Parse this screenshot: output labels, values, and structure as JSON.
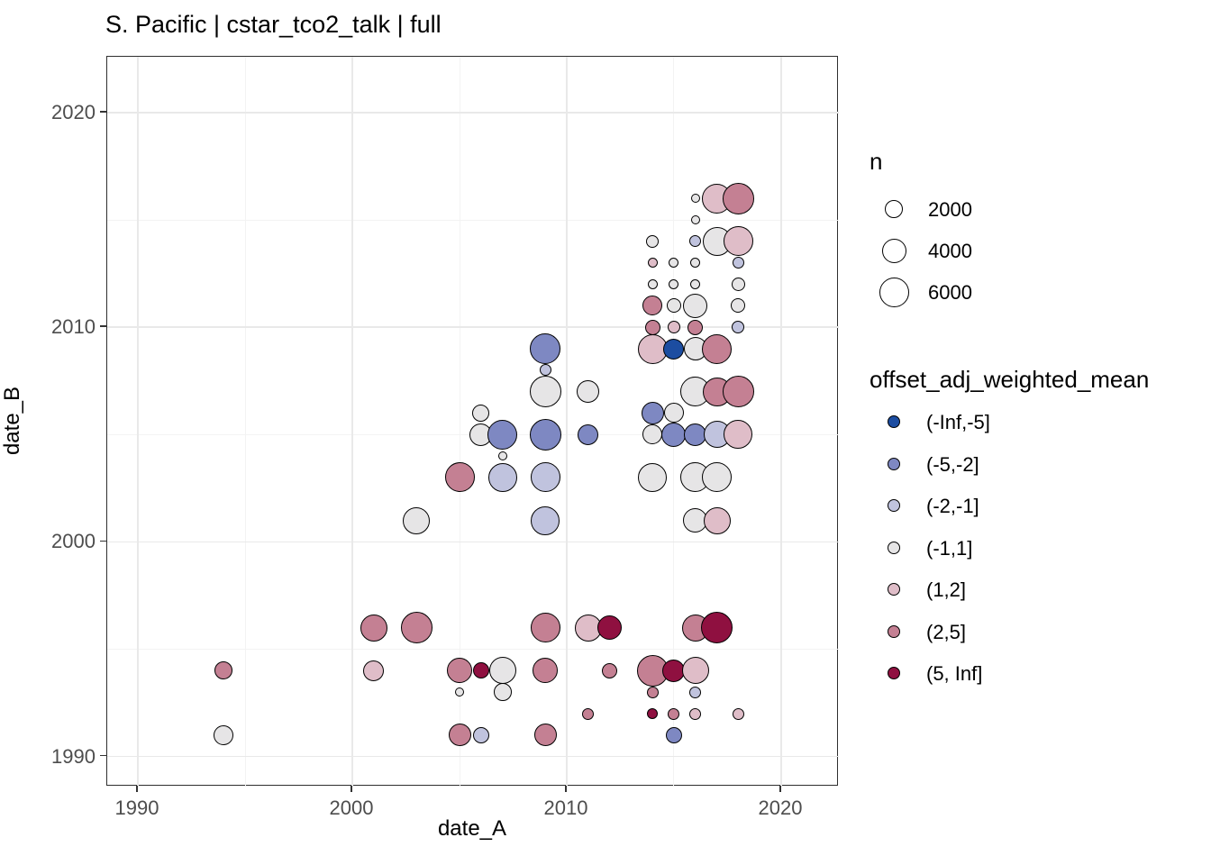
{
  "title": "S. Pacific | cstar_tco2_talk | full",
  "axes": {
    "x": {
      "label": "date_A",
      "min": 1988.57,
      "max": 2022.69,
      "ticks": [
        1990,
        2000,
        2010,
        2020
      ],
      "minor": [
        1995,
        2005,
        2015
      ]
    },
    "y": {
      "label": "date_B",
      "min": 1988.6,
      "max": 2022.6,
      "ticks": [
        1990,
        2000,
        2010,
        2020
      ],
      "minor": [
        1995,
        2005,
        2015
      ]
    }
  },
  "legend_size": {
    "title": "n",
    "items": [
      {
        "n": "2000",
        "d": 20
      },
      {
        "n": "4000",
        "d": 27
      },
      {
        "n": "6000",
        "d": 33
      }
    ]
  },
  "legend_color": {
    "title": "offset_adj_weighted_mean",
    "items": [
      {
        "label": "(-Inf,-5]",
        "color": "#1c4da1"
      },
      {
        "label": "(-5,-2]",
        "color": "#7e88c2"
      },
      {
        "label": "(-2,-1]",
        "color": "#c0c3de"
      },
      {
        "label": "(-1,1]",
        "color": "#e6e5e6"
      },
      {
        "label": "(1,2]",
        "color": "#dfbdc8"
      },
      {
        "label": "(2,5]",
        "color": "#c48093"
      },
      {
        "label": "(5, Inf]",
        "color": "#8f1040"
      }
    ]
  },
  "chart_data": {
    "type": "scatter",
    "title": "S. Pacific | cstar_tco2_talk | full",
    "xlabel": "date_A",
    "ylabel": "date_B",
    "xlim": [
      1988.6,
      2022.7
    ],
    "ylim": [
      1988.6,
      2022.6
    ],
    "grid": "on",
    "legend_position": "right",
    "size_variable": "n",
    "color_variable": "offset_adj_weighted_mean",
    "bins": [
      "(-Inf,-5]",
      "(-5,-2]",
      "(-2,-1]",
      "(-1,1]",
      "(1,2]",
      "(2,5]",
      "(5, Inf]"
    ],
    "point_columns": [
      "date_A",
      "date_B",
      "bin_index",
      "diameter_px",
      "n_est"
    ],
    "points": [
      [
        2016,
        2016,
        3,
        10,
        550
      ],
      [
        2017,
        2016,
        4,
        33,
        5900
      ],
      [
        2018,
        2016,
        5,
        35,
        6600
      ],
      [
        2016,
        2015,
        3,
        10,
        550
      ],
      [
        2014,
        2014,
        3,
        14,
        1050
      ],
      [
        2016,
        2014,
        2,
        13,
        900
      ],
      [
        2017,
        2014,
        3,
        32,
        5550
      ],
      [
        2018,
        2014,
        4,
        33,
        5900
      ],
      [
        2014,
        2013,
        4,
        11,
        650
      ],
      [
        2015,
        2013,
        3,
        11,
        650
      ],
      [
        2016,
        2013,
        3,
        11,
        650
      ],
      [
        2018,
        2013,
        2,
        13,
        900
      ],
      [
        2014,
        2012,
        3,
        11,
        650
      ],
      [
        2015,
        2012,
        3,
        11,
        650
      ],
      [
        2016,
        2012,
        3,
        11,
        650
      ],
      [
        2018,
        2012,
        3,
        15,
        1200
      ],
      [
        2014,
        2011,
        5,
        22,
        2600
      ],
      [
        2015,
        2011,
        3,
        16,
        1400
      ],
      [
        2016,
        2011,
        3,
        27,
        3950
      ],
      [
        2018,
        2011,
        3,
        16,
        1400
      ],
      [
        2014,
        2010,
        5,
        17,
        1550
      ],
      [
        2015,
        2010,
        4,
        14,
        1050
      ],
      [
        2016,
        2010,
        5,
        17,
        1550
      ],
      [
        2018,
        2010,
        2,
        14,
        1050
      ],
      [
        2009,
        2009,
        1,
        34,
        6250
      ],
      [
        2014,
        2009,
        4,
        33,
        5900
      ],
      [
        2015,
        2009,
        0,
        23,
        2850
      ],
      [
        2016,
        2009,
        3,
        26,
        3650
      ],
      [
        2017,
        2009,
        5,
        33,
        5900
      ],
      [
        2009,
        2008,
        2,
        13,
        900
      ],
      [
        2009,
        2007,
        3,
        35,
        6600
      ],
      [
        2011,
        2007,
        3,
        25,
        3400
      ],
      [
        2016,
        2007,
        3,
        33,
        5900
      ],
      [
        2017,
        2007,
        5,
        32,
        5550
      ],
      [
        2018,
        2007,
        5,
        35,
        6600
      ],
      [
        2006,
        2006,
        3,
        19,
        1950
      ],
      [
        2014,
        2006,
        1,
        25,
        3400
      ],
      [
        2015,
        2006,
        3,
        22,
        2600
      ],
      [
        2006,
        2005,
        3,
        25,
        3400
      ],
      [
        2007,
        2005,
        1,
        33,
        5900
      ],
      [
        2009,
        2005,
        1,
        35,
        6600
      ],
      [
        2011,
        2005,
        1,
        23,
        2850
      ],
      [
        2014,
        2005,
        3,
        22,
        2600
      ],
      [
        2015,
        2005,
        1,
        27,
        3950
      ],
      [
        2016,
        2005,
        1,
        25,
        3400
      ],
      [
        2017,
        2005,
        2,
        30,
        4850
      ],
      [
        2018,
        2005,
        4,
        32,
        5550
      ],
      [
        2007,
        2004,
        3,
        10,
        550
      ],
      [
        2005,
        2003,
        5,
        33,
        5900
      ],
      [
        2007,
        2003,
        2,
        32,
        5550
      ],
      [
        2009,
        2003,
        2,
        33,
        5900
      ],
      [
        2014,
        2003,
        3,
        32,
        5550
      ],
      [
        2016,
        2003,
        3,
        33,
        5900
      ],
      [
        2017,
        2003,
        3,
        33,
        5900
      ],
      [
        2003,
        2001,
        3,
        30,
        4850
      ],
      [
        2009,
        2001,
        2,
        32,
        5550
      ],
      [
        2016,
        2001,
        3,
        27,
        3950
      ],
      [
        2017,
        2001,
        4,
        30,
        4850
      ],
      [
        2001,
        1996,
        5,
        30,
        4850
      ],
      [
        2003,
        1996,
        5,
        35,
        6600
      ],
      [
        2009,
        1996,
        5,
        33,
        5900
      ],
      [
        2011,
        1996,
        4,
        30,
        4850
      ],
      [
        2012,
        1996,
        6,
        27,
        3950
      ],
      [
        2016,
        1996,
        5,
        30,
        4850
      ],
      [
        2017,
        1996,
        6,
        35,
        6600
      ],
      [
        1994,
        1994,
        5,
        20,
        2150
      ],
      [
        2001,
        1994,
        4,
        23,
        2850
      ],
      [
        2005,
        1994,
        5,
        28,
        4250
      ],
      [
        2006,
        1994,
        6,
        18,
        1750
      ],
      [
        2007,
        1994,
        3,
        30,
        4850
      ],
      [
        2009,
        1994,
        5,
        28,
        4250
      ],
      [
        2012,
        1994,
        5,
        17,
        1550
      ],
      [
        2014,
        1994,
        5,
        35,
        6600
      ],
      [
        2015,
        1994,
        6,
        25,
        3400
      ],
      [
        2016,
        1994,
        4,
        30,
        4850
      ],
      [
        2005,
        1993,
        3,
        10,
        550
      ],
      [
        2007,
        1993,
        3,
        20,
        2150
      ],
      [
        2014,
        1993,
        5,
        13,
        900
      ],
      [
        2016,
        1993,
        2,
        13,
        900
      ],
      [
        2011,
        1992,
        5,
        13,
        900
      ],
      [
        2014,
        1992,
        6,
        12,
        800
      ],
      [
        2015,
        1992,
        5,
        13,
        900
      ],
      [
        2016,
        1992,
        4,
        13,
        900
      ],
      [
        2018,
        1992,
        4,
        13,
        900
      ],
      [
        1994,
        1991,
        3,
        22,
        2600
      ],
      [
        2005,
        1991,
        5,
        25,
        3400
      ],
      [
        2006,
        1991,
        2,
        18,
        1750
      ],
      [
        2009,
        1991,
        5,
        25,
        3400
      ],
      [
        2015,
        1991,
        1,
        18,
        1750
      ]
    ]
  }
}
